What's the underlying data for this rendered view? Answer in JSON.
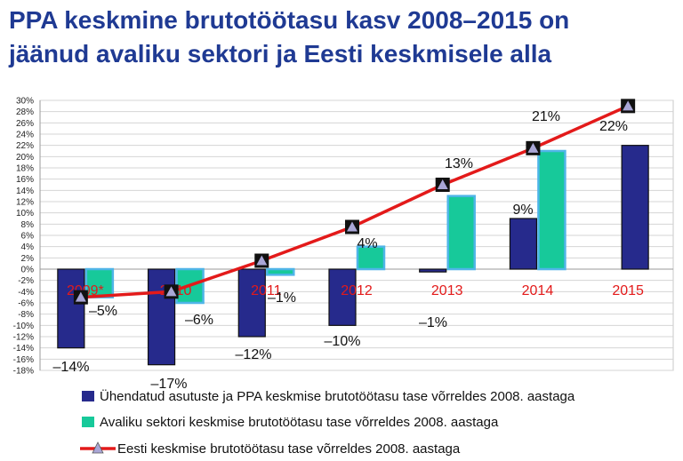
{
  "title_lines": [
    "PPA keskmine brutotöötasu kasv 2008–2015 on",
    "jäänud avaliku sektori ja Eesti keskmisele alla"
  ],
  "colors": {
    "title": "#1f3a93",
    "series_a": "#262a8c",
    "series_b": "#17c99a",
    "series_c": "#e31a1a",
    "category_label": "#e31a1a"
  },
  "chart_data": {
    "type": "bar",
    "categories": [
      "2009*",
      "2010",
      "2011",
      "2012",
      "2013",
      "2014",
      "2015"
    ],
    "ylim": [
      -18,
      30
    ],
    "yticks": [
      "30%",
      "28%",
      "26%",
      "24%",
      "22%",
      "20%",
      "18%",
      "16%",
      "14%",
      "12%",
      "10%",
      "8%",
      "6%",
      "4%",
      "2%",
      "0%",
      "-2%",
      "-4%",
      "-6%",
      "-8%",
      "-10%",
      "-12%",
      "-14%",
      "-16%",
      "-18%"
    ],
    "grid": true,
    "legend_position": "bottom",
    "series": [
      {
        "name": "Ühendatud asutuste ja PPA keskmise brutotöötasu tase võrreldes 2008. aastaga",
        "type": "bar",
        "values": [
          -14,
          -17,
          -12,
          -10,
          -0.5,
          9,
          22
        ],
        "labels": [
          "–14%",
          "–17%",
          "–12%",
          "–10%",
          "",
          "9%",
          "22%"
        ]
      },
      {
        "name": "Avaliku sektori keskmise brutotöötasu tase võrreldes 2008. aastaga",
        "type": "bar",
        "values": [
          -5,
          -6,
          -1,
          4,
          13,
          21,
          null
        ],
        "labels": [
          "–5%",
          "–6%",
          "–1%",
          "4%",
          "13%",
          "21%",
          ""
        ]
      },
      {
        "name": "Eesti keskmise brutotöötasu tase võrreldes 2008. aastaga",
        "type": "line",
        "values": [
          -5,
          -4,
          1.5,
          7.5,
          15,
          21.5,
          29
        ]
      }
    ],
    "annotations": [
      "–1%"
    ]
  }
}
